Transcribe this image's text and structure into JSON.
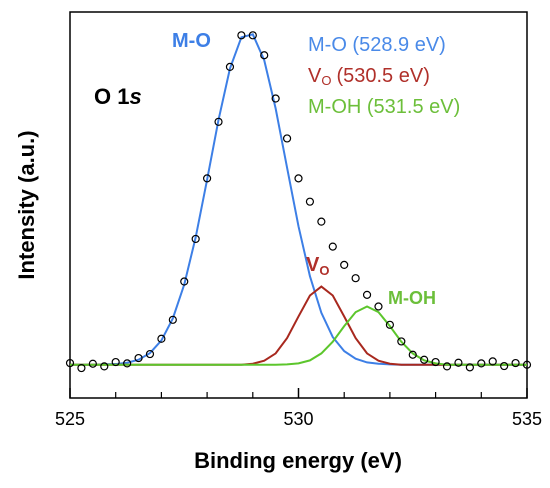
{
  "chart_data": {
    "type": "line",
    "xlabel": "Binding energy (eV)",
    "ylabel": "Intensity (a.u.)",
    "xlim": [
      525,
      535
    ],
    "xticks": [
      525,
      530,
      535
    ],
    "xminorticks": [
      526,
      527,
      528,
      529,
      531,
      532,
      533,
      534
    ],
    "ylim": [
      -0.1,
      1.06
    ],
    "x": [
      525,
      525.25,
      525.5,
      525.75,
      526,
      526.25,
      526.5,
      526.75,
      527,
      527.25,
      527.5,
      527.75,
      528,
      528.25,
      528.5,
      528.75,
      529,
      529.25,
      529.5,
      529.75,
      530,
      530.25,
      530.5,
      530.75,
      531,
      531.25,
      531.5,
      531.75,
      532,
      532.25,
      532.5,
      532.75,
      533,
      533.25,
      533.5,
      533.75,
      534,
      534.25,
      534.5,
      534.75,
      535
    ],
    "data_points": {
      "color": "#000000",
      "values": [
        0.005,
        -0.01,
        0.003,
        -0.005,
        0.008,
        0.004,
        0.02,
        0.032,
        0.078,
        0.135,
        0.25,
        0.378,
        0.56,
        0.73,
        0.895,
        0.99,
        0.99,
        0.93,
        0.8,
        0.68,
        0.56,
        0.49,
        0.43,
        0.355,
        0.3,
        0.26,
        0.21,
        0.175,
        0.12,
        0.07,
        0.03,
        0.015,
        0.008,
        -0.005,
        0.006,
        -0.008,
        0.004,
        0.01,
        -0.004,
        0.005,
        0
      ]
    },
    "series": [
      {
        "name": "M-O (528.9 eV)",
        "color": "#3d7fe6",
        "text_color": "#4a8ae8",
        "values": [
          0,
          0,
          0,
          0.001,
          0.002,
          0.006,
          0.015,
          0.035,
          0.073,
          0.139,
          0.241,
          0.383,
          0.556,
          0.736,
          0.89,
          0.984,
          0.993,
          0.915,
          0.77,
          0.592,
          0.416,
          0.266,
          0.156,
          0.083,
          0.041,
          0.018,
          0.007,
          0.003,
          0.001,
          0,
          0,
          0,
          0,
          0,
          0,
          0,
          0,
          0,
          0,
          0,
          0
        ]
      },
      {
        "name": "V",
        "name_subscript": "O",
        "name_suffix": "(530.5 eV)",
        "color": "#a8281e",
        "text_color": "#b0302a",
        "values": [
          0,
          0,
          0,
          0,
          0,
          0,
          0,
          0,
          0,
          0,
          0,
          0,
          0,
          0,
          0,
          0,
          0.003,
          0.012,
          0.034,
          0.08,
          0.145,
          0.208,
          0.235,
          0.208,
          0.145,
          0.08,
          0.034,
          0.012,
          0.003,
          0,
          0,
          0,
          0,
          0,
          0,
          0,
          0,
          0,
          0,
          0,
          0
        ]
      },
      {
        "name": "M-OH (531.5 eV)",
        "color": "#5cc62c",
        "text_color": "#6cbf3a",
        "values": [
          0,
          0,
          0,
          0,
          0,
          0,
          0,
          0,
          0,
          0,
          0,
          0,
          0,
          0,
          0,
          0,
          0,
          0,
          0,
          0.001,
          0.004,
          0.013,
          0.034,
          0.069,
          0.116,
          0.158,
          0.175,
          0.158,
          0.116,
          0.069,
          0.034,
          0.013,
          0.004,
          0,
          0,
          0,
          0,
          0,
          0,
          0,
          0
        ]
      }
    ],
    "annotations": [
      {
        "text": "M-O",
        "color": "#3d7fe6"
      },
      {
        "text": "V",
        "subscript": "O",
        "color": "#b0302a"
      },
      {
        "text": "M-OH",
        "color": "#6cbf3a"
      },
      {
        "text": "O 1",
        "italic": "s",
        "color": "#000000"
      }
    ]
  }
}
